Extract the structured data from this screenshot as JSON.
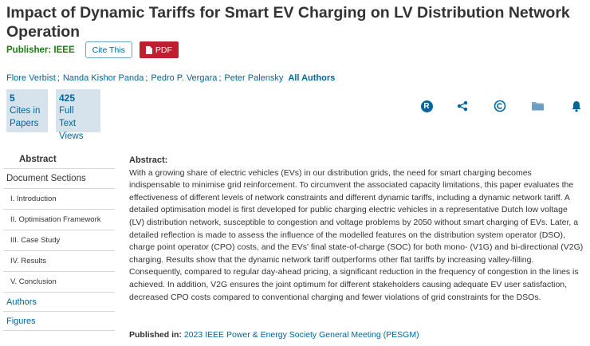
{
  "article": {
    "title": "Impact of Dynamic Tariffs for Smart EV Charging on LV Distribution Network Operation",
    "publisher_label": "Publisher: IEEE",
    "cite_button": "Cite This",
    "pdf_button": "PDF",
    "authors": [
      "Flore Verbist",
      "Nanda Kishor Panda",
      "Pedro P. Vergara",
      "Peter Palensky"
    ],
    "author_separator": ";",
    "all_authors_link": "All Authors"
  },
  "metrics": [
    {
      "number": "5",
      "line1": "Cites in",
      "line2": "Papers"
    },
    {
      "number": "425",
      "line1": "Full",
      "line2": "Text Views"
    }
  ],
  "toolbar_icons": [
    "rights-icon",
    "share-icon",
    "copyright-icon",
    "folder-icon",
    "alert-bell-icon"
  ],
  "toolbar": {
    "rights_letter": "R"
  },
  "sidebar": {
    "abstract": "Abstract",
    "document_sections": "Document Sections",
    "sections": [
      "I. Introduction",
      "II. Optimisation Framework",
      "III. Case Study",
      "IV. Results",
      "V. Conclusion"
    ],
    "authors": "Authors",
    "figures": "Figures"
  },
  "abstract": {
    "heading": "Abstract:",
    "text": "With a growing share of electric vehicles (EVs) in our distribution grids, the need for smart charging becomes indispensable to minimise grid reinforcement. To circumvent the associated capacity limitations, this paper evaluates the effectiveness of different levels of network constraints and different dynamic tariffs, including a dynamic network tariff. A detailed optimisation model is first developed for public charging electric vehicles in a representative Dutch low voltage (LV) distribution network, susceptible to congestion and voltage problems by 2050 without smart charging of EVs. Later, a detailed reflection is made to assess the influence of the modelled features on the distribution system operator (DSO), charge point operator (CPO) costs, and the EVs' final state-of-charge (SOC) for both mono- (V1G) and bi-directional (V2G) charging. Results show that the dynamic network tariff outperforms other flat tariffs by increasing valley-filling. Consequently, compared to regular day-ahead pricing, a significant reduction in the frequency of congestion in the lines is achieved. In addition, V2G ensures the joint optimum for different stakeholders causing adequate EV user satisfaction, decreased CPO costs compared to conventional charging and fewer violations of grid constraints for the DSOs."
  },
  "published": {
    "label": "Published in:",
    "value": "2023 IEEE Power & Energy Society General Meeting (PESGM)"
  },
  "colors": {
    "link": "#006699",
    "publisher": "#1e7b14",
    "pdf": "#be1e2d",
    "metric_bg": "#d7e3ec"
  }
}
